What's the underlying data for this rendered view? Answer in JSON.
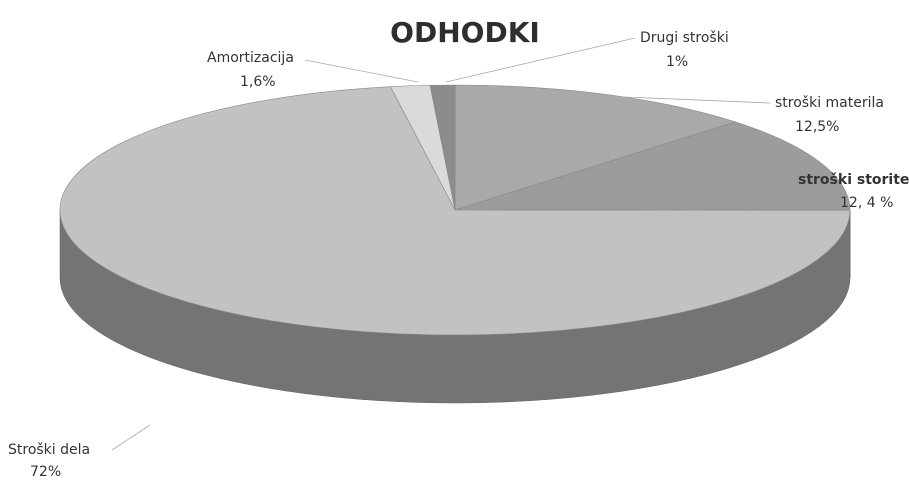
{
  "chart_data": {
    "type": "pie",
    "title": "ODHODKI",
    "categories": [
      "stroški materila",
      "stroški storitev",
      "Stroški dela",
      "Amortizacija",
      "Drugi stroški"
    ],
    "values": [
      12.5,
      12.4,
      72,
      1.6,
      1
    ],
    "value_labels": [
      "12,5%",
      "12, 4 %",
      "72%",
      "1,6%",
      "1%"
    ],
    "colors": [
      "#a9a9a9",
      "#9c9c9c",
      "#c2c2c2",
      "#dadada",
      "#8c8c8c"
    ]
  }
}
